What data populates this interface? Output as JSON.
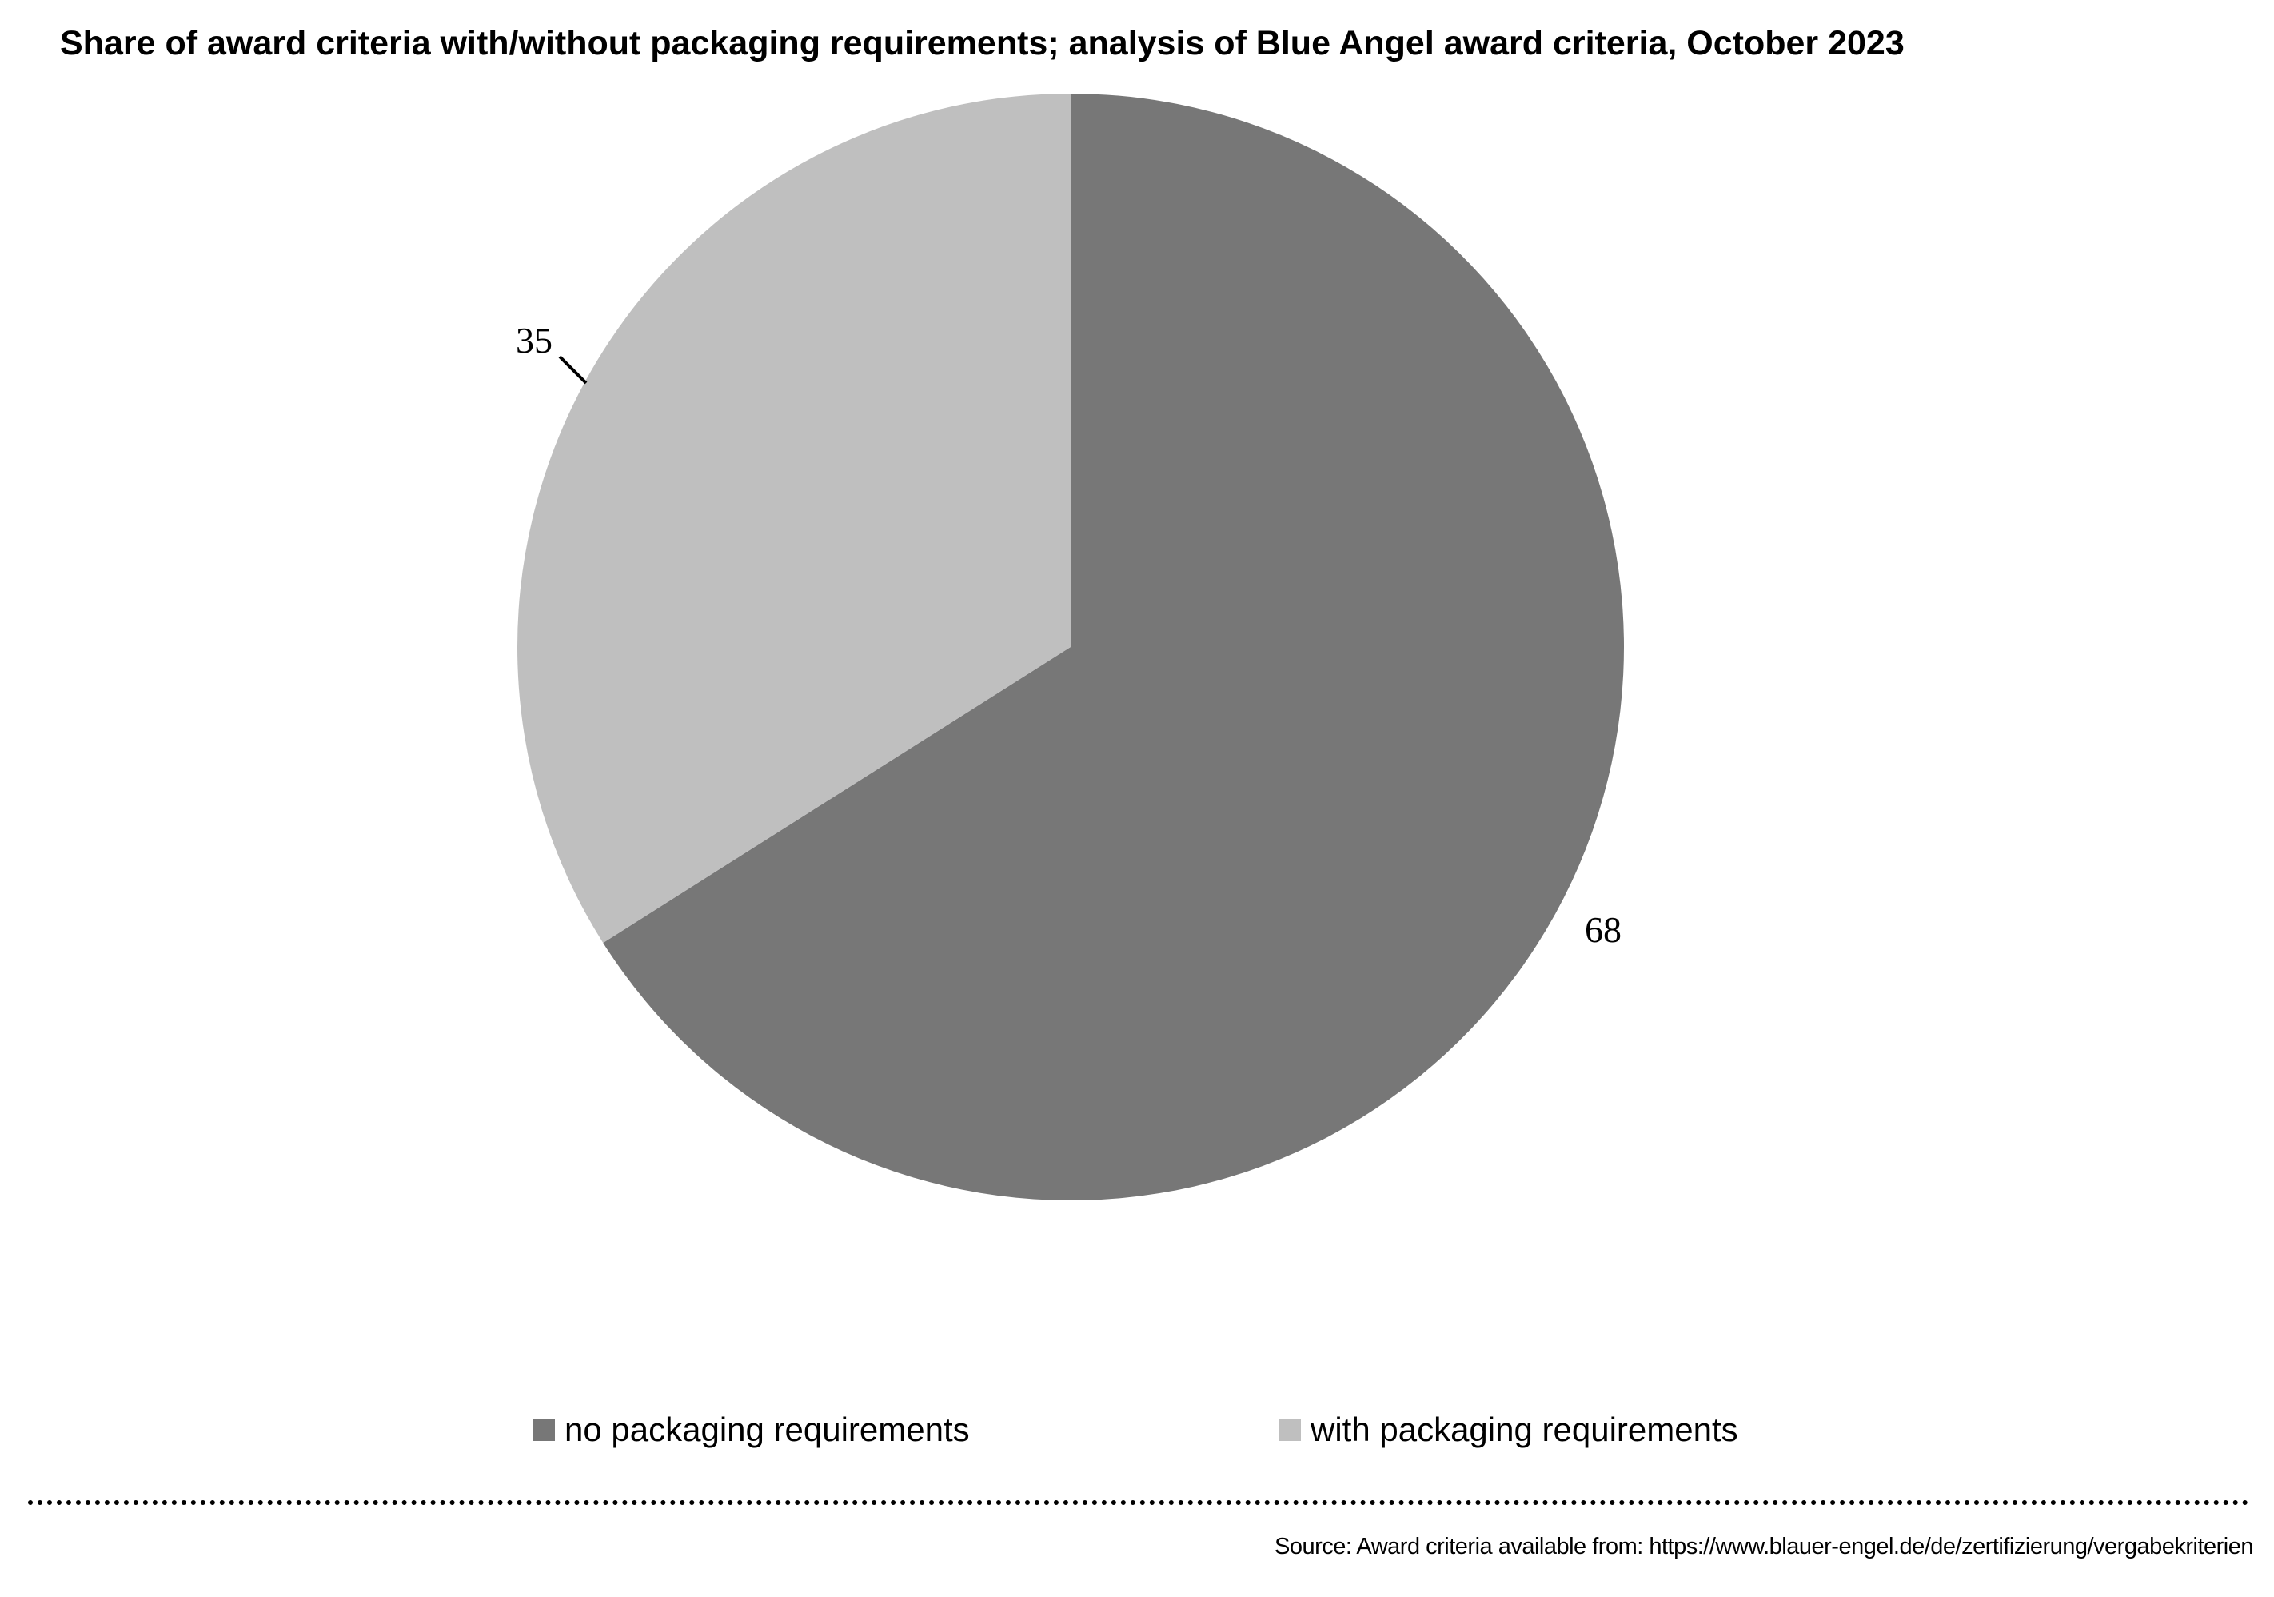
{
  "title": "Share of award criteria with/without packaging requirements; analysis of Blue Angel award criteria, October 2023",
  "chart_data": {
    "type": "pie",
    "title": "Share of award criteria with/without packaging requirements; analysis of Blue Angel award criteria, October 2023",
    "categories": [
      "no packaging requirements",
      "with packaging requirements"
    ],
    "values": [
      68,
      35
    ],
    "colors": [
      "#777777",
      "#bfbfbf"
    ],
    "start_angle_deg": 0,
    "direction": "clockwise",
    "data_labels": [
      "68",
      "35"
    ],
    "legend_placement": "bottom"
  },
  "legend": [
    {
      "label": "no packaging requirements",
      "color": "#777777"
    },
    {
      "label": "with packaging requirements",
      "color": "#bfbfbf"
    }
  ],
  "source": "Source: Award criteria available from: https://www.blauer-engel.de/de/zertifizierung/vergabekriterien"
}
